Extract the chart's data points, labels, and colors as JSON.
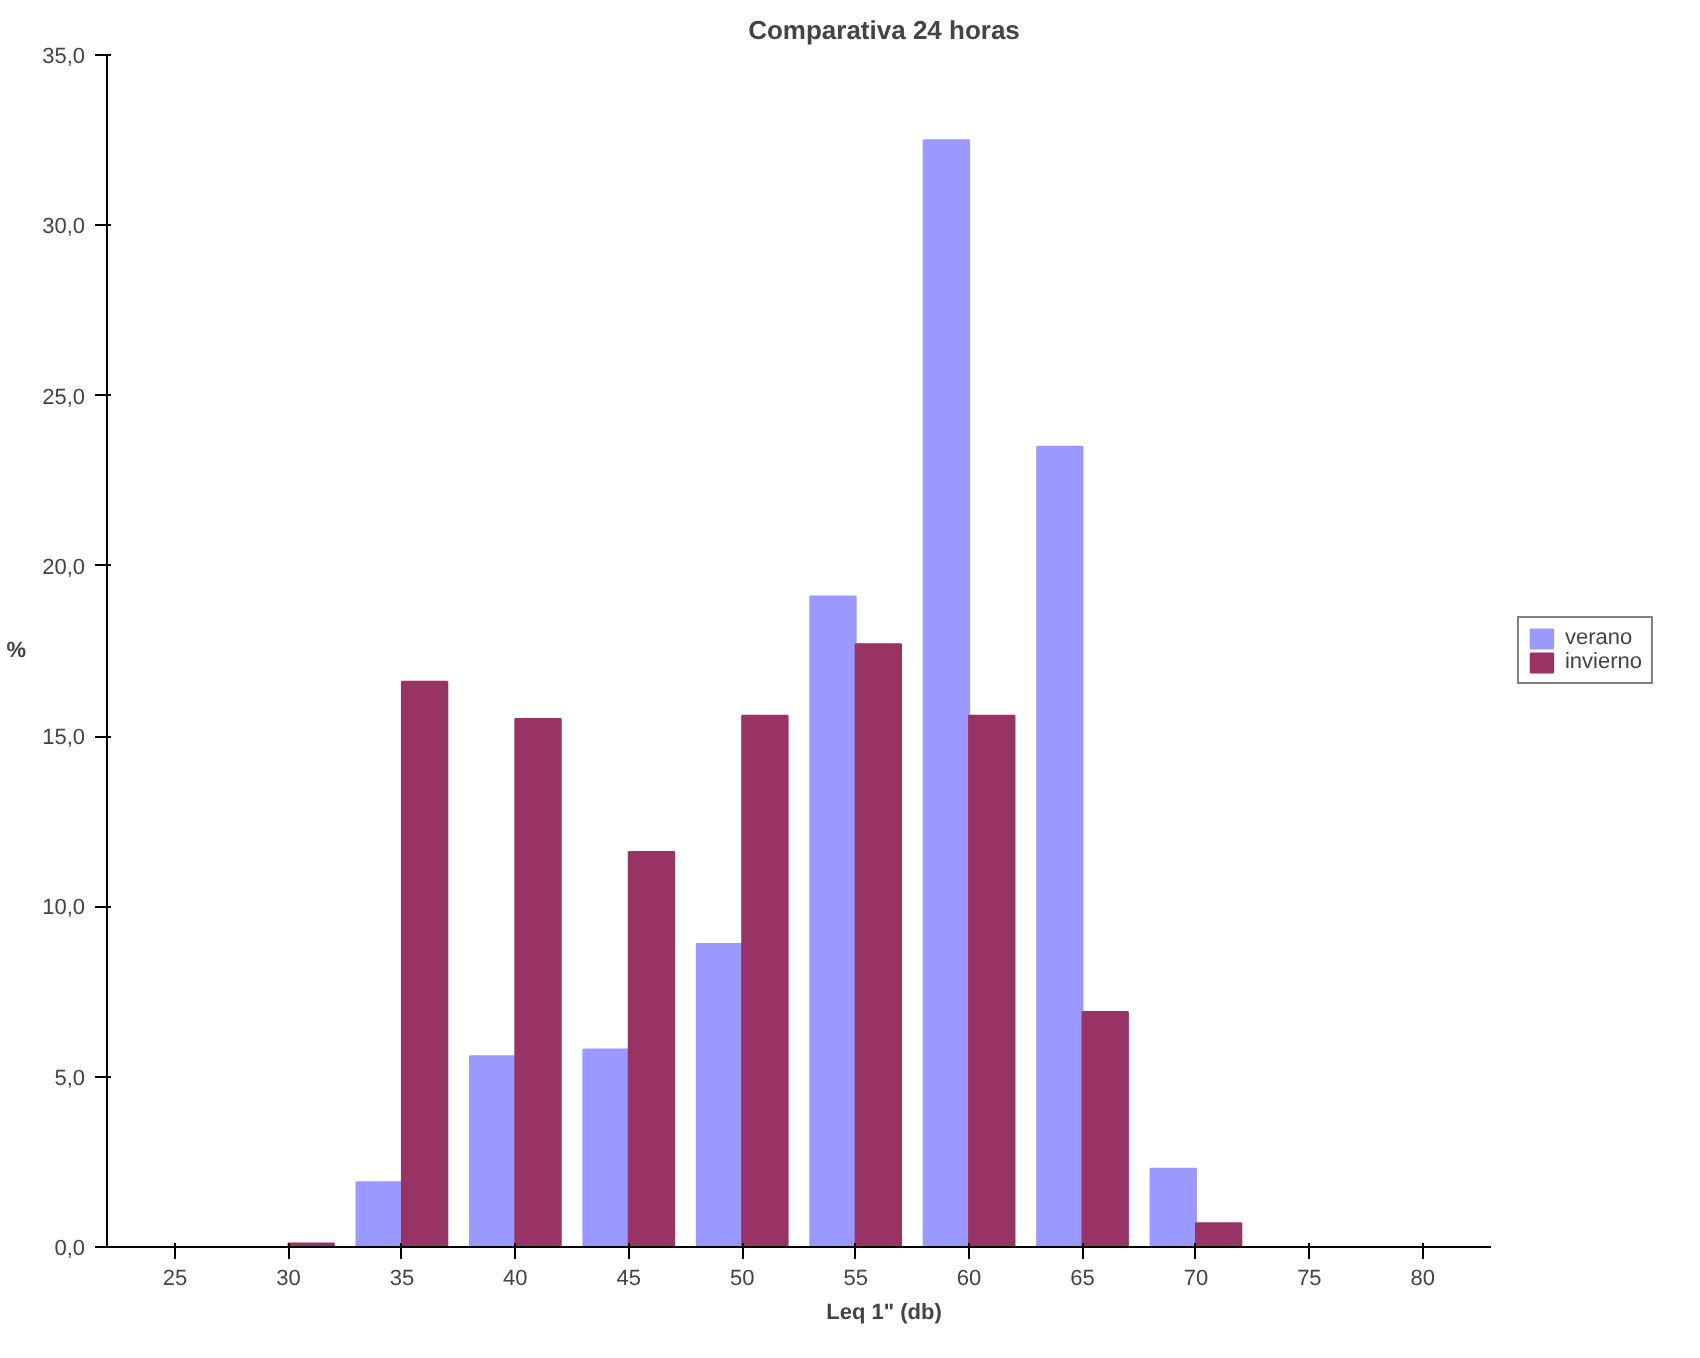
{
  "chart_data": {
    "type": "bar",
    "title": "Comparativa 24 horas",
    "xlabel": "Leq 1\" (db)",
    "ylabel": "%",
    "categories": [
      "25",
      "30",
      "35",
      "40",
      "45",
      "50",
      "55",
      "60",
      "65",
      "70",
      "75",
      "80"
    ],
    "series": [
      {
        "name": "verano",
        "color": "#9999ff",
        "values": [
          0,
          0,
          1.9,
          5.6,
          5.8,
          8.9,
          19.1,
          32.5,
          23.5,
          2.3,
          0,
          0
        ]
      },
      {
        "name": "invierno",
        "color": "#993366",
        "values": [
          0,
          0.1,
          16.6,
          15.5,
          11.6,
          15.6,
          17.7,
          15.6,
          6.9,
          0.7,
          0,
          0
        ]
      }
    ],
    "ylim": [
      0,
      35
    ],
    "yticks": [
      {
        "value": 0,
        "label": "0,0"
      },
      {
        "value": 5,
        "label": "5,0"
      },
      {
        "value": 10,
        "label": "10,0"
      },
      {
        "value": 15,
        "label": "15,0"
      },
      {
        "value": 20,
        "label": "20,0"
      },
      {
        "value": 25,
        "label": "25,0"
      },
      {
        "value": 30,
        "label": "30,0"
      },
      {
        "value": 35,
        "label": "35,0"
      }
    ],
    "grid": false,
    "legend": "right"
  }
}
